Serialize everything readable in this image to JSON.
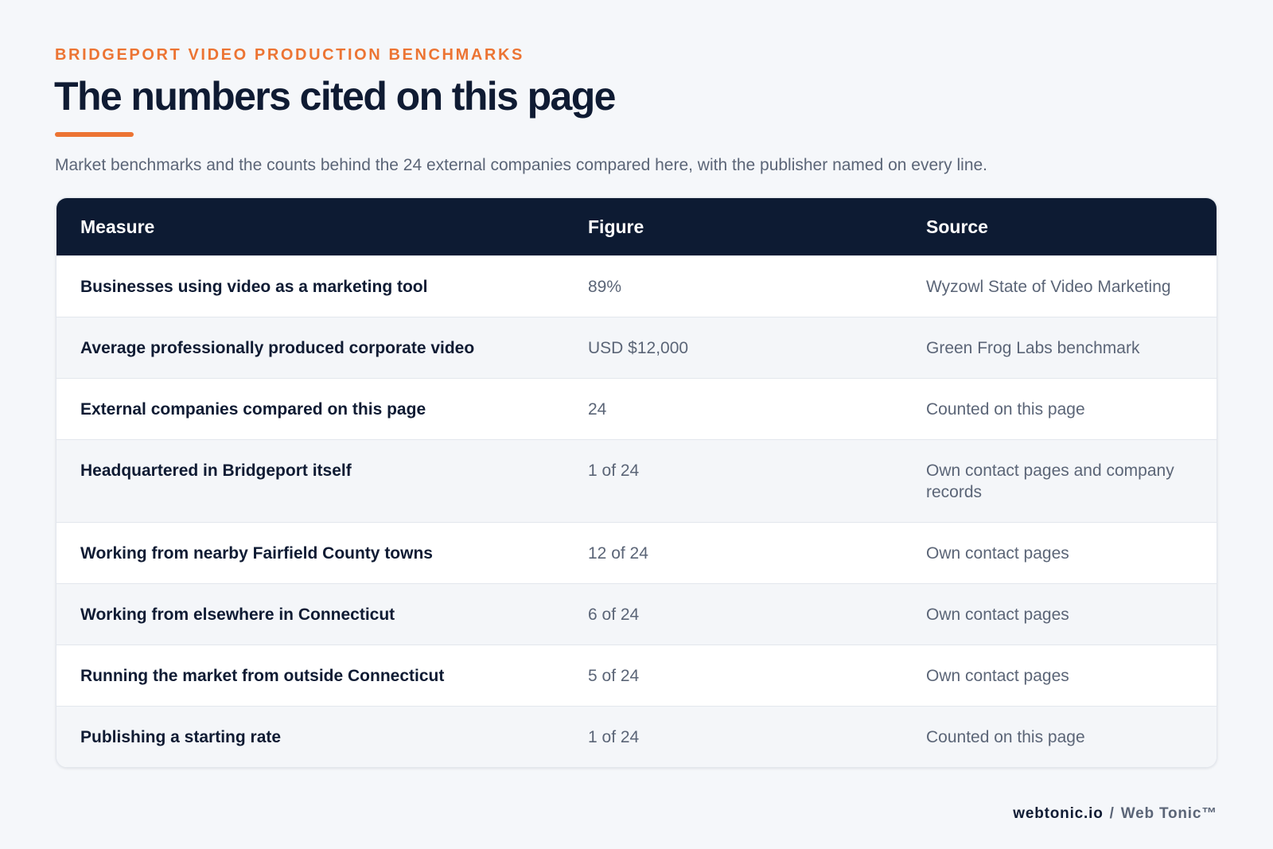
{
  "header": {
    "eyebrow": "BRIDGEPORT VIDEO PRODUCTION BENCHMARKS",
    "title": "The numbers cited on this page",
    "subtitle": "Market benchmarks and the counts behind the 24 external companies compared here, with the publisher named on every line."
  },
  "table": {
    "columns": [
      "Measure",
      "Figure",
      "Source"
    ],
    "rows": [
      [
        "Businesses using video as a marketing tool",
        "89%",
        "Wyzowl State of Video Marketing"
      ],
      [
        "Average professionally produced corporate video",
        "USD $12,000",
        "Green Frog Labs benchmark"
      ],
      [
        "External companies compared on this page",
        "24",
        "Counted on this page"
      ],
      [
        "Headquartered in Bridgeport itself",
        "1 of 24",
        "Own contact pages and company records"
      ],
      [
        "Working from nearby Fairfield County towns",
        "12 of 24",
        "Own contact pages"
      ],
      [
        "Working from elsewhere in Connecticut",
        "6 of 24",
        "Own contact pages"
      ],
      [
        "Running the market from outside Connecticut",
        "5 of 24",
        "Own contact pages"
      ],
      [
        "Publishing a starting rate",
        "1 of 24",
        "Counted on this page"
      ]
    ]
  },
  "footer": {
    "parts": [
      "webtonic.io",
      "/",
      "Web Tonic™"
    ]
  }
}
